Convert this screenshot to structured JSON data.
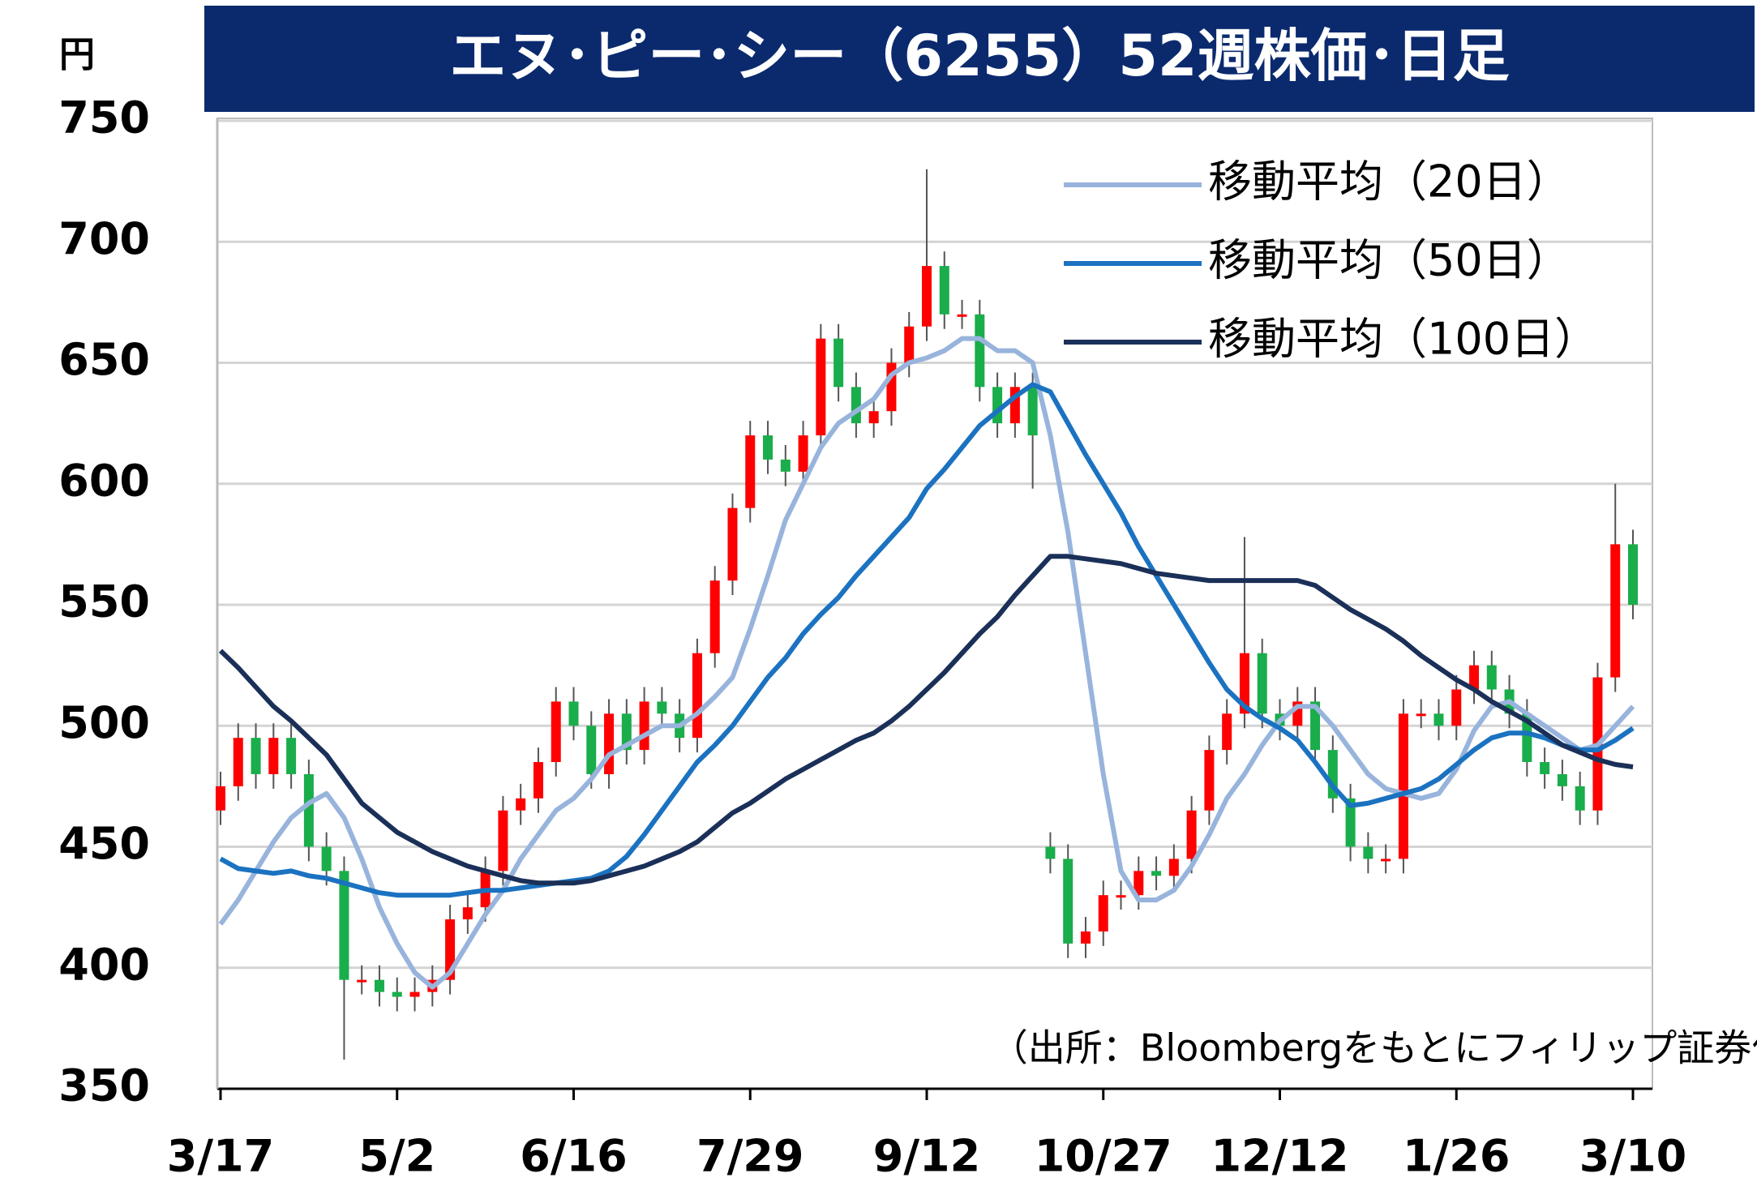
{
  "chart_data": {
    "type": "candlestick",
    "title": "エヌ･ピー･シー（6255）52週株価･日足",
    "y_unit": "円",
    "source": "（出所：Bloombergをもとにフィリップ証券作成）",
    "categories": [
      "3/17",
      null,
      null,
      null,
      null,
      null,
      null,
      null,
      null,
      null,
      "5/2",
      null,
      null,
      null,
      null,
      null,
      null,
      null,
      null,
      null,
      "6/16",
      null,
      null,
      null,
      null,
      null,
      null,
      null,
      null,
      null,
      "7/29",
      null,
      null,
      null,
      null,
      null,
      null,
      null,
      null,
      null,
      "9/12",
      null,
      null,
      null,
      null,
      null,
      null,
      null,
      null,
      null,
      "10/27",
      null,
      null,
      null,
      null,
      null,
      null,
      null,
      null,
      null,
      "12/12",
      null,
      null,
      null,
      null,
      null,
      null,
      null,
      null,
      null,
      "1/26",
      null,
      null,
      null,
      null,
      null,
      null,
      null,
      null,
      null,
      "3/10"
    ],
    "open": [
      465,
      475,
      495,
      480,
      495,
      480,
      450,
      440,
      395,
      395,
      390,
      388,
      390,
      395,
      420,
      425,
      440,
      465,
      470,
      485,
      510,
      500,
      480,
      505,
      490,
      510,
      505,
      495,
      530,
      560,
      590,
      620,
      610,
      605,
      620,
      660,
      640,
      625,
      630,
      650,
      665,
      690,
      670,
      670,
      640,
      625,
      640,
      450,
      445,
      410,
      415,
      430,
      430,
      440,
      438,
      445,
      465,
      490,
      505,
      530,
      505,
      500,
      510,
      490,
      470,
      450,
      445,
      445,
      505,
      505,
      500,
      515,
      525,
      515,
      505,
      485,
      480,
      475,
      465,
      520,
      575
    ],
    "high": [
      481,
      501,
      501,
      501,
      501,
      486,
      456,
      446,
      401,
      401,
      396,
      396,
      401,
      426,
      431,
      446,
      471,
      476,
      491,
      516,
      516,
      506,
      511,
      511,
      516,
      516,
      511,
      536,
      566,
      596,
      626,
      626,
      616,
      626,
      666,
      666,
      646,
      636,
      656,
      671,
      730,
      696,
      676,
      676,
      646,
      646,
      646,
      456,
      451,
      421,
      436,
      436,
      446,
      446,
      451,
      471,
      496,
      511,
      578,
      536,
      511,
      516,
      516,
      496,
      476,
      456,
      451,
      511,
      511,
      511,
      521,
      531,
      531,
      521,
      511,
      491,
      486,
      481,
      526,
      600,
      581
    ],
    "low": [
      459,
      469,
      474,
      474,
      474,
      444,
      434,
      362,
      389,
      384,
      382,
      382,
      384,
      389,
      414,
      419,
      434,
      459,
      464,
      479,
      494,
      474,
      474,
      484,
      484,
      499,
      489,
      489,
      524,
      554,
      584,
      604,
      599,
      599,
      614,
      634,
      619,
      619,
      624,
      644,
      659,
      664,
      664,
      634,
      619,
      619,
      598,
      439,
      404,
      404,
      409,
      424,
      424,
      432,
      432,
      439,
      459,
      484,
      499,
      499,
      494,
      494,
      484,
      464,
      444,
      439,
      439,
      439,
      499,
      494,
      494,
      509,
      509,
      499,
      479,
      474,
      469,
      459,
      459,
      514,
      544
    ],
    "close": [
      475,
      495,
      480,
      495,
      480,
      450,
      440,
      395,
      395,
      390,
      388,
      390,
      395,
      420,
      425,
      440,
      465,
      470,
      485,
      510,
      500,
      480,
      505,
      490,
      510,
      505,
      495,
      530,
      560,
      590,
      620,
      610,
      605,
      620,
      660,
      640,
      625,
      630,
      650,
      665,
      690,
      670,
      670,
      640,
      625,
      640,
      620,
      445,
      410,
      415,
      430,
      430,
      440,
      438,
      445,
      465,
      490,
      505,
      530,
      505,
      500,
      510,
      490,
      470,
      450,
      445,
      445,
      505,
      505,
      500,
      515,
      525,
      515,
      505,
      485,
      480,
      475,
      465,
      520,
      575,
      550
    ],
    "up_color": "#ff0000",
    "down_color": "#1aad4b",
    "series": [
      {
        "name": "移動平均（20日）",
        "color": "#98b4dc",
        "values": [
          418,
          428,
          440,
          452,
          462,
          468,
          472,
          462,
          445,
          425,
          410,
          398,
          392,
          398,
          410,
          422,
          432,
          445,
          455,
          465,
          470,
          478,
          488,
          492,
          496,
          500,
          500,
          505,
          512,
          520,
          540,
          562,
          585,
          600,
          615,
          625,
          630,
          635,
          645,
          650,
          652,
          655,
          660,
          660,
          655,
          655,
          650,
          620,
          580,
          530,
          480,
          440,
          428,
          428,
          432,
          442,
          455,
          470,
          480,
          492,
          502,
          508,
          508,
          500,
          490,
          480,
          474,
          472,
          470,
          472,
          482,
          498,
          508,
          510,
          505,
          500,
          495,
          490,
          492,
          500,
          508
        ]
      },
      {
        "name": "移動平均（50日）",
        "color": "#1b72c0",
        "values": [
          445,
          441,
          440,
          439,
          440,
          438,
          437,
          435,
          433,
          431,
          430,
          430,
          430,
          430,
          431,
          432,
          432,
          433,
          434,
          435,
          436,
          437,
          440,
          446,
          455,
          465,
          475,
          485,
          492,
          500,
          510,
          520,
          528,
          538,
          546,
          553,
          562,
          570,
          578,
          586,
          598,
          606,
          615,
          624,
          630,
          636,
          641,
          638,
          625,
          612,
          600,
          588,
          574,
          562,
          550,
          538,
          526,
          515,
          508,
          503,
          499,
          494,
          485,
          475,
          467,
          468,
          470,
          472,
          474,
          478,
          484,
          490,
          495,
          497,
          497,
          495,
          492,
          490,
          490,
          494,
          499
        ]
      },
      {
        "name": "移動平均（100日）",
        "color": "#1b3058",
        "values": [
          531,
          524,
          516,
          508,
          502,
          495,
          488,
          478,
          468,
          462,
          456,
          452,
          448,
          445,
          442,
          440,
          438,
          436,
          435,
          435,
          435,
          436,
          438,
          440,
          442,
          445,
          448,
          452,
          458,
          464,
          468,
          473,
          478,
          482,
          486,
          490,
          494,
          497,
          502,
          508,
          515,
          522,
          530,
          538,
          545,
          554,
          562,
          570,
          570,
          569,
          568,
          567,
          565,
          563,
          562,
          561,
          560,
          560,
          560,
          560,
          560,
          560,
          558,
          553,
          548,
          544,
          540,
          535,
          529,
          524,
          519,
          515,
          510,
          506,
          502,
          497,
          492,
          489,
          486,
          484,
          483
        ]
      }
    ],
    "ylim": [
      350,
      750
    ],
    "yticks": [
      350,
      400,
      450,
      500,
      550,
      600,
      650,
      700,
      750
    ],
    "grid": true
  }
}
